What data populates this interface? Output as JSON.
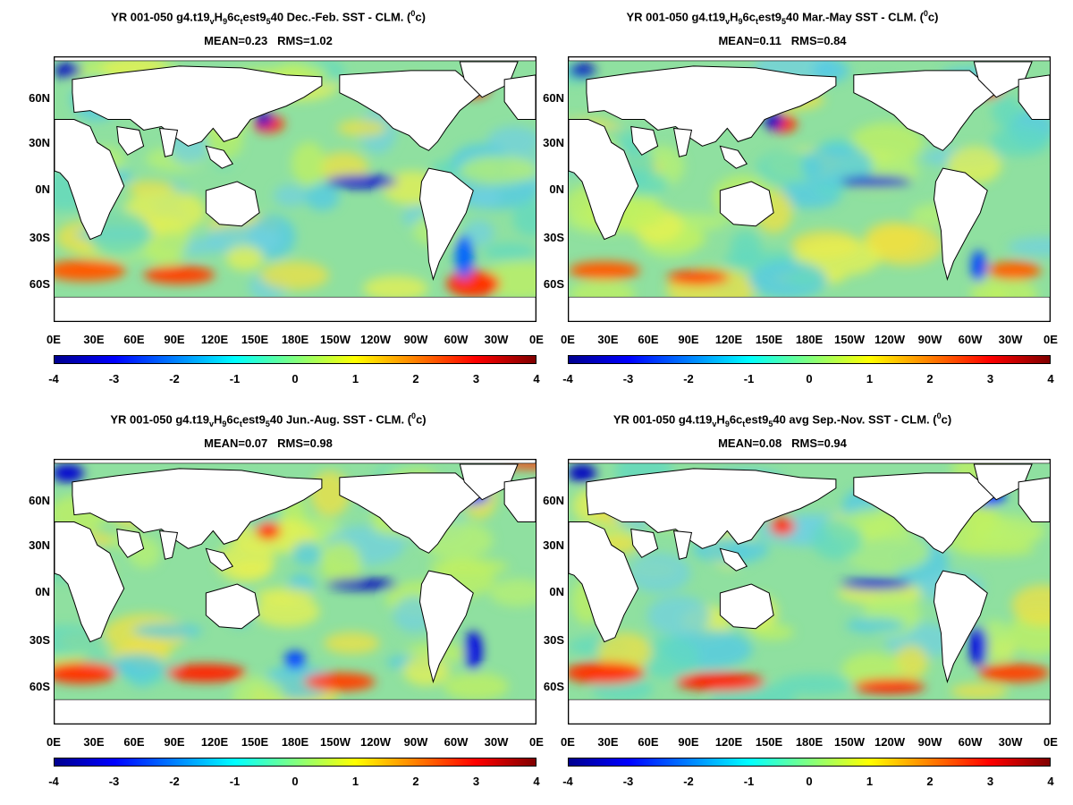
{
  "panels": [
    {
      "title_parts": [
        "YR 001-050 g4.t19",
        "v",
        "H",
        "9",
        "6c",
        "t",
        "est9",
        "5",
        "40  Dec.-Feb. SST - CLM. (",
        "0",
        "c)"
      ],
      "mean_label": "MEAN=0.23",
      "rms_label": "RMS=1.02"
    },
    {
      "title_parts": [
        "YR 001-050 g4.t19",
        "v",
        "H",
        "9",
        "6c",
        "t",
        "est9",
        "5",
        "40 Mar.-May SST - CLM. (",
        "0",
        "c)"
      ],
      "mean_label": "MEAN=0.11",
      "rms_label": "RMS=0.84"
    },
    {
      "title_parts": [
        "YR 001-050 g4.t19",
        "v",
        "H",
        "9",
        "6c",
        "t",
        "est9",
        "5",
        "40 Jun.-Aug. SST - CLM. (",
        "0",
        "c)"
      ],
      "mean_label": "MEAN=0.07",
      "rms_label": "RMS=0.98"
    },
    {
      "title_parts": [
        "YR 001-050 g4.t19",
        "v",
        "H",
        "9",
        "6c",
        "t",
        "est9",
        "5",
        "40 avg Sep.-Nov. SST - CLM. (",
        "0",
        "c)"
      ],
      "mean_label": "MEAN=0.08",
      "rms_label": "RMS=0.94"
    }
  ],
  "lat_labels": [
    "60N",
    "30N",
    "0N",
    "30S",
    "60S"
  ],
  "lon_labels": [
    "0E",
    "30E",
    "60E",
    "90E",
    "120E",
    "150E",
    "180E",
    "150W",
    "120W",
    "90W",
    "60W",
    "30W",
    "0E"
  ],
  "colorbar_labels": [
    "-4",
    "-3",
    "-2",
    "-1",
    "0",
    "1",
    "2",
    "3",
    "4"
  ],
  "colorbar_colors": [
    "#00008f",
    "#0000ff",
    "#0080ff",
    "#00ffff",
    "#80ff80",
    "#ffff00",
    "#ff8000",
    "#ff0000",
    "#800000"
  ],
  "colors": {
    "land": "#ffffff",
    "ocean_base": "#8fe0a0",
    "coast": "#000000"
  }
}
